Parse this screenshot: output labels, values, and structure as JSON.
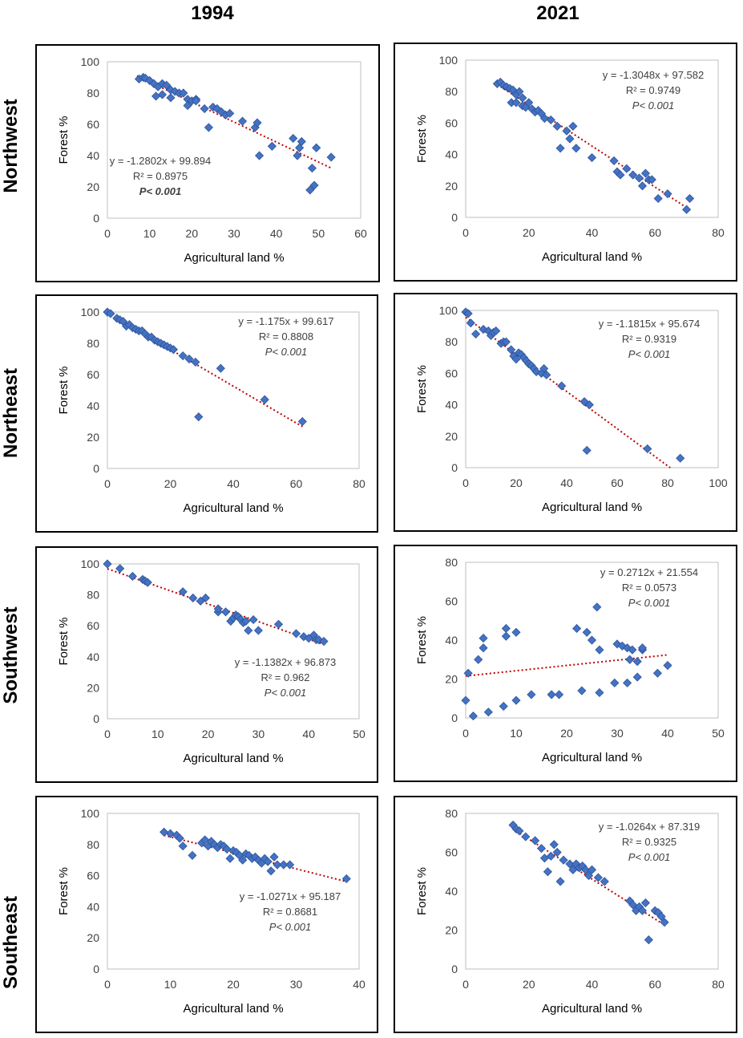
{
  "columns": [
    "1994",
    "2021"
  ],
  "rows": [
    "Northwest",
    "Northeast",
    "Southwest",
    "Southeast"
  ],
  "colors": {
    "marker": "#4472C4",
    "marker_edge": "#2F5597",
    "trend": "#C00000"
  },
  "chart_data": [
    {
      "type": "scatter",
      "region": "Northwest",
      "year": "1994",
      "xlabel": "Agricultural land %",
      "ylabel": "Forest %",
      "xlim": [
        0,
        60
      ],
      "ylim": [
        0,
        100
      ],
      "xticks": [
        0,
        10,
        20,
        30,
        40,
        50,
        60
      ],
      "yticks": [
        0,
        20,
        40,
        60,
        80,
        100
      ],
      "equation": "y = -1.2802x + 99.894",
      "r2": "R² = 0.8975",
      "p": "P< 0.001",
      "p_bold": true,
      "trend": {
        "slope": -1.2802,
        "intercept": 99.894,
        "x_from": 7,
        "x_to": 53
      },
      "points": [
        [
          7.5,
          89
        ],
        [
          8.5,
          90
        ],
        [
          9,
          89.5
        ],
        [
          10,
          88
        ],
        [
          11,
          86
        ],
        [
          11.5,
          78
        ],
        [
          12,
          84
        ],
        [
          13,
          86
        ],
        [
          13,
          79
        ],
        [
          14,
          85
        ],
        [
          15,
          82
        ],
        [
          15,
          77
        ],
        [
          16,
          81
        ],
        [
          17,
          80
        ],
        [
          18,
          80
        ],
        [
          19,
          76
        ],
        [
          19,
          72
        ],
        [
          20,
          75
        ],
        [
          21,
          76
        ],
        [
          21,
          75
        ],
        [
          23,
          70
        ],
        [
          24,
          58
        ],
        [
          25,
          71
        ],
        [
          26,
          70
        ],
        [
          27,
          68
        ],
        [
          28,
          66
        ],
        [
          29,
          67
        ],
        [
          32,
          62
        ],
        [
          35,
          58
        ],
        [
          35.5,
          61
        ],
        [
          36,
          40
        ],
        [
          39,
          46
        ],
        [
          44,
          51
        ],
        [
          45,
          40
        ],
        [
          45.5,
          45
        ],
        [
          46,
          49
        ],
        [
          48,
          18
        ],
        [
          48.5,
          32
        ],
        [
          49,
          21
        ],
        [
          49.5,
          45
        ],
        [
          53,
          39
        ]
      ]
    },
    {
      "type": "scatter",
      "region": "Northwest",
      "year": "2021",
      "xlabel": "Agricultural land %",
      "ylabel": "Forest %",
      "xlim": [
        0,
        80
      ],
      "ylim": [
        0,
        100
      ],
      "xticks": [
        0,
        20,
        40,
        60,
        80
      ],
      "yticks": [
        0,
        20,
        40,
        60,
        80,
        100
      ],
      "equation": "y = -1.3048x + 97.582",
      "r2": "R² = 0.9749",
      "p": "P< 0.001",
      "p_bold": false,
      "trend": {
        "slope": -1.3048,
        "intercept": 97.582,
        "x_from": 10,
        "x_to": 71
      },
      "points": [
        [
          10,
          85
        ],
        [
          11,
          86
        ],
        [
          12,
          84
        ],
        [
          13,
          83
        ],
        [
          14,
          82
        ],
        [
          14.5,
          73
        ],
        [
          15,
          81
        ],
        [
          16,
          78
        ],
        [
          16,
          73
        ],
        [
          17,
          80
        ],
        [
          18,
          76
        ],
        [
          18,
          71
        ],
        [
          19,
          70
        ],
        [
          20,
          73
        ],
        [
          21,
          69
        ],
        [
          22,
          67
        ],
        [
          23,
          68
        ],
        [
          24,
          66
        ],
        [
          25,
          63
        ],
        [
          27,
          62
        ],
        [
          29,
          58
        ],
        [
          30,
          44
        ],
        [
          32,
          55
        ],
        [
          33,
          50
        ],
        [
          34,
          58
        ],
        [
          35,
          44
        ],
        [
          40,
          38
        ],
        [
          47,
          36
        ],
        [
          48,
          29
        ],
        [
          49,
          27
        ],
        [
          51,
          31
        ],
        [
          53,
          27
        ],
        [
          55,
          25
        ],
        [
          56,
          20
        ],
        [
          57,
          28
        ],
        [
          58,
          24
        ],
        [
          59,
          24
        ],
        [
          61,
          12
        ],
        [
          64,
          15
        ],
        [
          70,
          5
        ],
        [
          71,
          12
        ]
      ]
    },
    {
      "type": "scatter",
      "region": "Northeast",
      "year": "1994",
      "xlabel": "Agricultural land %",
      "ylabel": "Forest %",
      "xlim": [
        0,
        80
      ],
      "ylim": [
        0,
        100
      ],
      "xticks": [
        0,
        20,
        40,
        60,
        80
      ],
      "yticks": [
        0,
        20,
        40,
        60,
        80,
        100
      ],
      "equation": "y = -1.175x + 99.617",
      "r2": "R² = 0.8808",
      "p": "P< 0.001",
      "p_bold": false,
      "trend": {
        "slope": -1.175,
        "intercept": 99.617,
        "x_from": 0,
        "x_to": 62
      },
      "points": [
        [
          0,
          100
        ],
        [
          1,
          99
        ],
        [
          3,
          96
        ],
        [
          4,
          95
        ],
        [
          5,
          94
        ],
        [
          6,
          91
        ],
        [
          7,
          92
        ],
        [
          8,
          90
        ],
        [
          9,
          89
        ],
        [
          10,
          88
        ],
        [
          11,
          88
        ],
        [
          12,
          86
        ],
        [
          13,
          84
        ],
        [
          14,
          84
        ],
        [
          15,
          82
        ],
        [
          16,
          81
        ],
        [
          17,
          80
        ],
        [
          18,
          79
        ],
        [
          19,
          78
        ],
        [
          20,
          77
        ],
        [
          21,
          76
        ],
        [
          24,
          72
        ],
        [
          26,
          70
        ],
        [
          28,
          68
        ],
        [
          29,
          33
        ],
        [
          36,
          64
        ],
        [
          50,
          44
        ],
        [
          62,
          30
        ]
      ]
    },
    {
      "type": "scatter",
      "region": "Northeast",
      "year": "2021",
      "xlabel": "Agricultural land %",
      "ylabel": "Forest %",
      "xlim": [
        0,
        100
      ],
      "ylim": [
        0,
        100
      ],
      "xticks": [
        0,
        20,
        40,
        60,
        80,
        100
      ],
      "yticks": [
        0,
        20,
        40,
        60,
        80,
        100
      ],
      "equation": "y = -1.1815x + 95.674",
      "r2": "R² = 0.9319",
      "p": "P< 0.001",
      "p_bold": false,
      "trend": {
        "slope": -1.1815,
        "intercept": 95.674,
        "x_from": 0,
        "x_to": 81
      },
      "points": [
        [
          0,
          99
        ],
        [
          1,
          98
        ],
        [
          2,
          92
        ],
        [
          4,
          85
        ],
        [
          7,
          88
        ],
        [
          9,
          87
        ],
        [
          10,
          84
        ],
        [
          11,
          86
        ],
        [
          12,
          87
        ],
        [
          14,
          79
        ],
        [
          15,
          80
        ],
        [
          16,
          80
        ],
        [
          18,
          75
        ],
        [
          19,
          71
        ],
        [
          20,
          69
        ],
        [
          21,
          73
        ],
        [
          22,
          72
        ],
        [
          23,
          70
        ],
        [
          24,
          68
        ],
        [
          25,
          66
        ],
        [
          26,
          65
        ],
        [
          27,
          63
        ],
        [
          28,
          61
        ],
        [
          30,
          60
        ],
        [
          31,
          63
        ],
        [
          32,
          59
        ],
        [
          38,
          52
        ],
        [
          47,
          42
        ],
        [
          48,
          11
        ],
        [
          49,
          40
        ],
        [
          72,
          12
        ],
        [
          85,
          6
        ]
      ]
    },
    {
      "type": "scatter",
      "region": "Southwest",
      "year": "1994",
      "xlabel": "Agricultural land %",
      "ylabel": "Forest %",
      "xlim": [
        0,
        50
      ],
      "ylim": [
        0,
        100
      ],
      "xticks": [
        0,
        10,
        20,
        30,
        40,
        50
      ],
      "yticks": [
        0,
        20,
        40,
        60,
        80,
        100
      ],
      "equation": "y = -1.1382x + 96.873",
      "r2": "R² = 0.962",
      "p": "P< 0.001",
      "p_bold": false,
      "trend": {
        "slope": -1.1382,
        "intercept": 96.873,
        "x_from": 0,
        "x_to": 43
      },
      "points": [
        [
          0,
          100
        ],
        [
          2.5,
          97
        ],
        [
          5,
          92
        ],
        [
          7,
          90
        ],
        [
          7.5,
          89
        ],
        [
          8,
          88
        ],
        [
          15,
          82
        ],
        [
          17,
          78
        ],
        [
          18.5,
          76
        ],
        [
          19.5,
          78
        ],
        [
          22,
          69
        ],
        [
          22,
          71
        ],
        [
          23.5,
          69
        ],
        [
          24.5,
          63
        ],
        [
          25,
          65
        ],
        [
          25.5,
          67
        ],
        [
          26,
          66
        ],
        [
          26.5,
          64
        ],
        [
          27,
          62
        ],
        [
          27.5,
          63
        ],
        [
          28,
          57
        ],
        [
          29,
          64
        ],
        [
          30,
          57
        ],
        [
          34,
          61
        ],
        [
          37.5,
          55
        ],
        [
          39,
          53
        ],
        [
          40,
          52
        ],
        [
          41,
          54
        ],
        [
          41.5,
          51
        ],
        [
          42,
          51
        ],
        [
          43,
          50
        ]
      ]
    },
    {
      "type": "scatter",
      "region": "Southwest",
      "year": "2021",
      "xlabel": "Agricultural land %",
      "ylabel": "Forest %",
      "xlim": [
        0,
        50
      ],
      "ylim": [
        0,
        80
      ],
      "xticks": [
        0,
        10,
        20,
        30,
        40,
        50
      ],
      "yticks": [
        0,
        20,
        40,
        60,
        80
      ],
      "equation": "y = 0.2712x + 21.554",
      "r2": "R² = 0.0573",
      "p": "P< 0.001",
      "p_bold": false,
      "trend": {
        "slope": 0.2712,
        "intercept": 21.554,
        "x_from": 0,
        "x_to": 40
      },
      "points": [
        [
          0,
          9
        ],
        [
          0.5,
          23
        ],
        [
          1.5,
          1
        ],
        [
          2.5,
          30
        ],
        [
          3.5,
          36
        ],
        [
          3.5,
          41
        ],
        [
          4.5,
          3
        ],
        [
          7.5,
          6
        ],
        [
          8,
          46
        ],
        [
          8,
          42
        ],
        [
          10,
          9
        ],
        [
          10,
          44
        ],
        [
          13,
          12
        ],
        [
          17,
          12
        ],
        [
          18.5,
          12
        ],
        [
          22,
          46
        ],
        [
          23,
          14
        ],
        [
          24,
          44
        ],
        [
          25,
          40
        ],
        [
          26,
          57
        ],
        [
          26.5,
          35
        ],
        [
          26.5,
          13
        ],
        [
          29.5,
          18
        ],
        [
          30,
          38
        ],
        [
          31,
          37
        ],
        [
          32,
          36
        ],
        [
          32,
          18
        ],
        [
          32.5,
          30
        ],
        [
          33,
          35
        ],
        [
          34,
          29
        ],
        [
          34,
          21
        ],
        [
          35,
          35
        ],
        [
          35,
          36
        ],
        [
          38,
          23
        ],
        [
          40,
          27
        ]
      ]
    },
    {
      "type": "scatter",
      "region": "Southeast",
      "year": "1994",
      "xlabel": "Agricultural land %",
      "ylabel": "Forest %",
      "xlim": [
        0,
        40
      ],
      "ylim": [
        0,
        100
      ],
      "xticks": [
        0,
        10,
        20,
        30,
        40
      ],
      "yticks": [
        0,
        20,
        40,
        60,
        80,
        100
      ],
      "equation": "y = -1.0271x + 95.187",
      "r2": "R² = 0.8681",
      "p": "P< 0.001",
      "p_bold": false,
      "trend": {
        "slope": -1.0271,
        "intercept": 95.187,
        "x_from": 9,
        "x_to": 38
      },
      "points": [
        [
          9,
          88
        ],
        [
          10,
          87
        ],
        [
          11,
          86
        ],
        [
          11.5,
          84
        ],
        [
          12,
          79
        ],
        [
          13.5,
          73
        ],
        [
          15,
          81
        ],
        [
          15.5,
          83
        ],
        [
          16,
          79
        ],
        [
          16.5,
          82
        ],
        [
          17,
          80
        ],
        [
          17.5,
          78
        ],
        [
          18,
          80
        ],
        [
          18.5,
          79
        ],
        [
          19,
          77
        ],
        [
          19.5,
          71
        ],
        [
          20,
          76
        ],
        [
          20.5,
          75
        ],
        [
          21,
          73
        ],
        [
          21.5,
          70
        ],
        [
          22,
          74
        ],
        [
          22.5,
          73
        ],
        [
          23,
          71
        ],
        [
          23.5,
          72
        ],
        [
          24,
          70
        ],
        [
          24.5,
          68
        ],
        [
          25,
          71
        ],
        [
          25.5,
          69
        ],
        [
          26,
          63
        ],
        [
          26.5,
          72
        ],
        [
          27,
          67
        ],
        [
          28,
          67
        ],
        [
          29,
          67
        ],
        [
          38,
          58
        ]
      ]
    },
    {
      "type": "scatter",
      "region": "Southeast",
      "year": "2021",
      "xlabel": "Agricultural land %",
      "ylabel": "Forest %",
      "xlim": [
        0,
        80
      ],
      "ylim": [
        0,
        80
      ],
      "xticks": [
        0,
        20,
        40,
        60,
        80
      ],
      "yticks": [
        0,
        20,
        40,
        60,
        80
      ],
      "equation": "y = -1.0264x + 87.319",
      "r2": "R² = 0.9325",
      "p": "P< 0.001",
      "p_bold": false,
      "trend": {
        "slope": -1.0264,
        "intercept": 87.319,
        "x_from": 15,
        "x_to": 63
      },
      "points": [
        [
          15,
          74
        ],
        [
          16,
          72
        ],
        [
          17,
          71
        ],
        [
          19,
          68
        ],
        [
          22,
          66
        ],
        [
          24,
          62
        ],
        [
          25,
          57
        ],
        [
          26,
          50
        ],
        [
          27,
          58
        ],
        [
          28,
          64
        ],
        [
          29,
          60
        ],
        [
          30,
          45
        ],
        [
          31,
          56
        ],
        [
          33,
          54
        ],
        [
          34,
          51
        ],
        [
          35,
          54
        ],
        [
          36,
          52
        ],
        [
          37,
          53
        ],
        [
          38,
          51
        ],
        [
          39,
          48
        ],
        [
          40,
          51
        ],
        [
          42,
          47
        ],
        [
          44,
          45
        ],
        [
          52,
          35
        ],
        [
          53,
          33
        ],
        [
          54,
          30
        ],
        [
          55,
          32
        ],
        [
          56,
          30
        ],
        [
          57,
          34
        ],
        [
          58,
          15
        ],
        [
          60,
          30
        ],
        [
          61,
          29
        ],
        [
          62,
          27
        ],
        [
          63,
          24
        ]
      ]
    }
  ]
}
